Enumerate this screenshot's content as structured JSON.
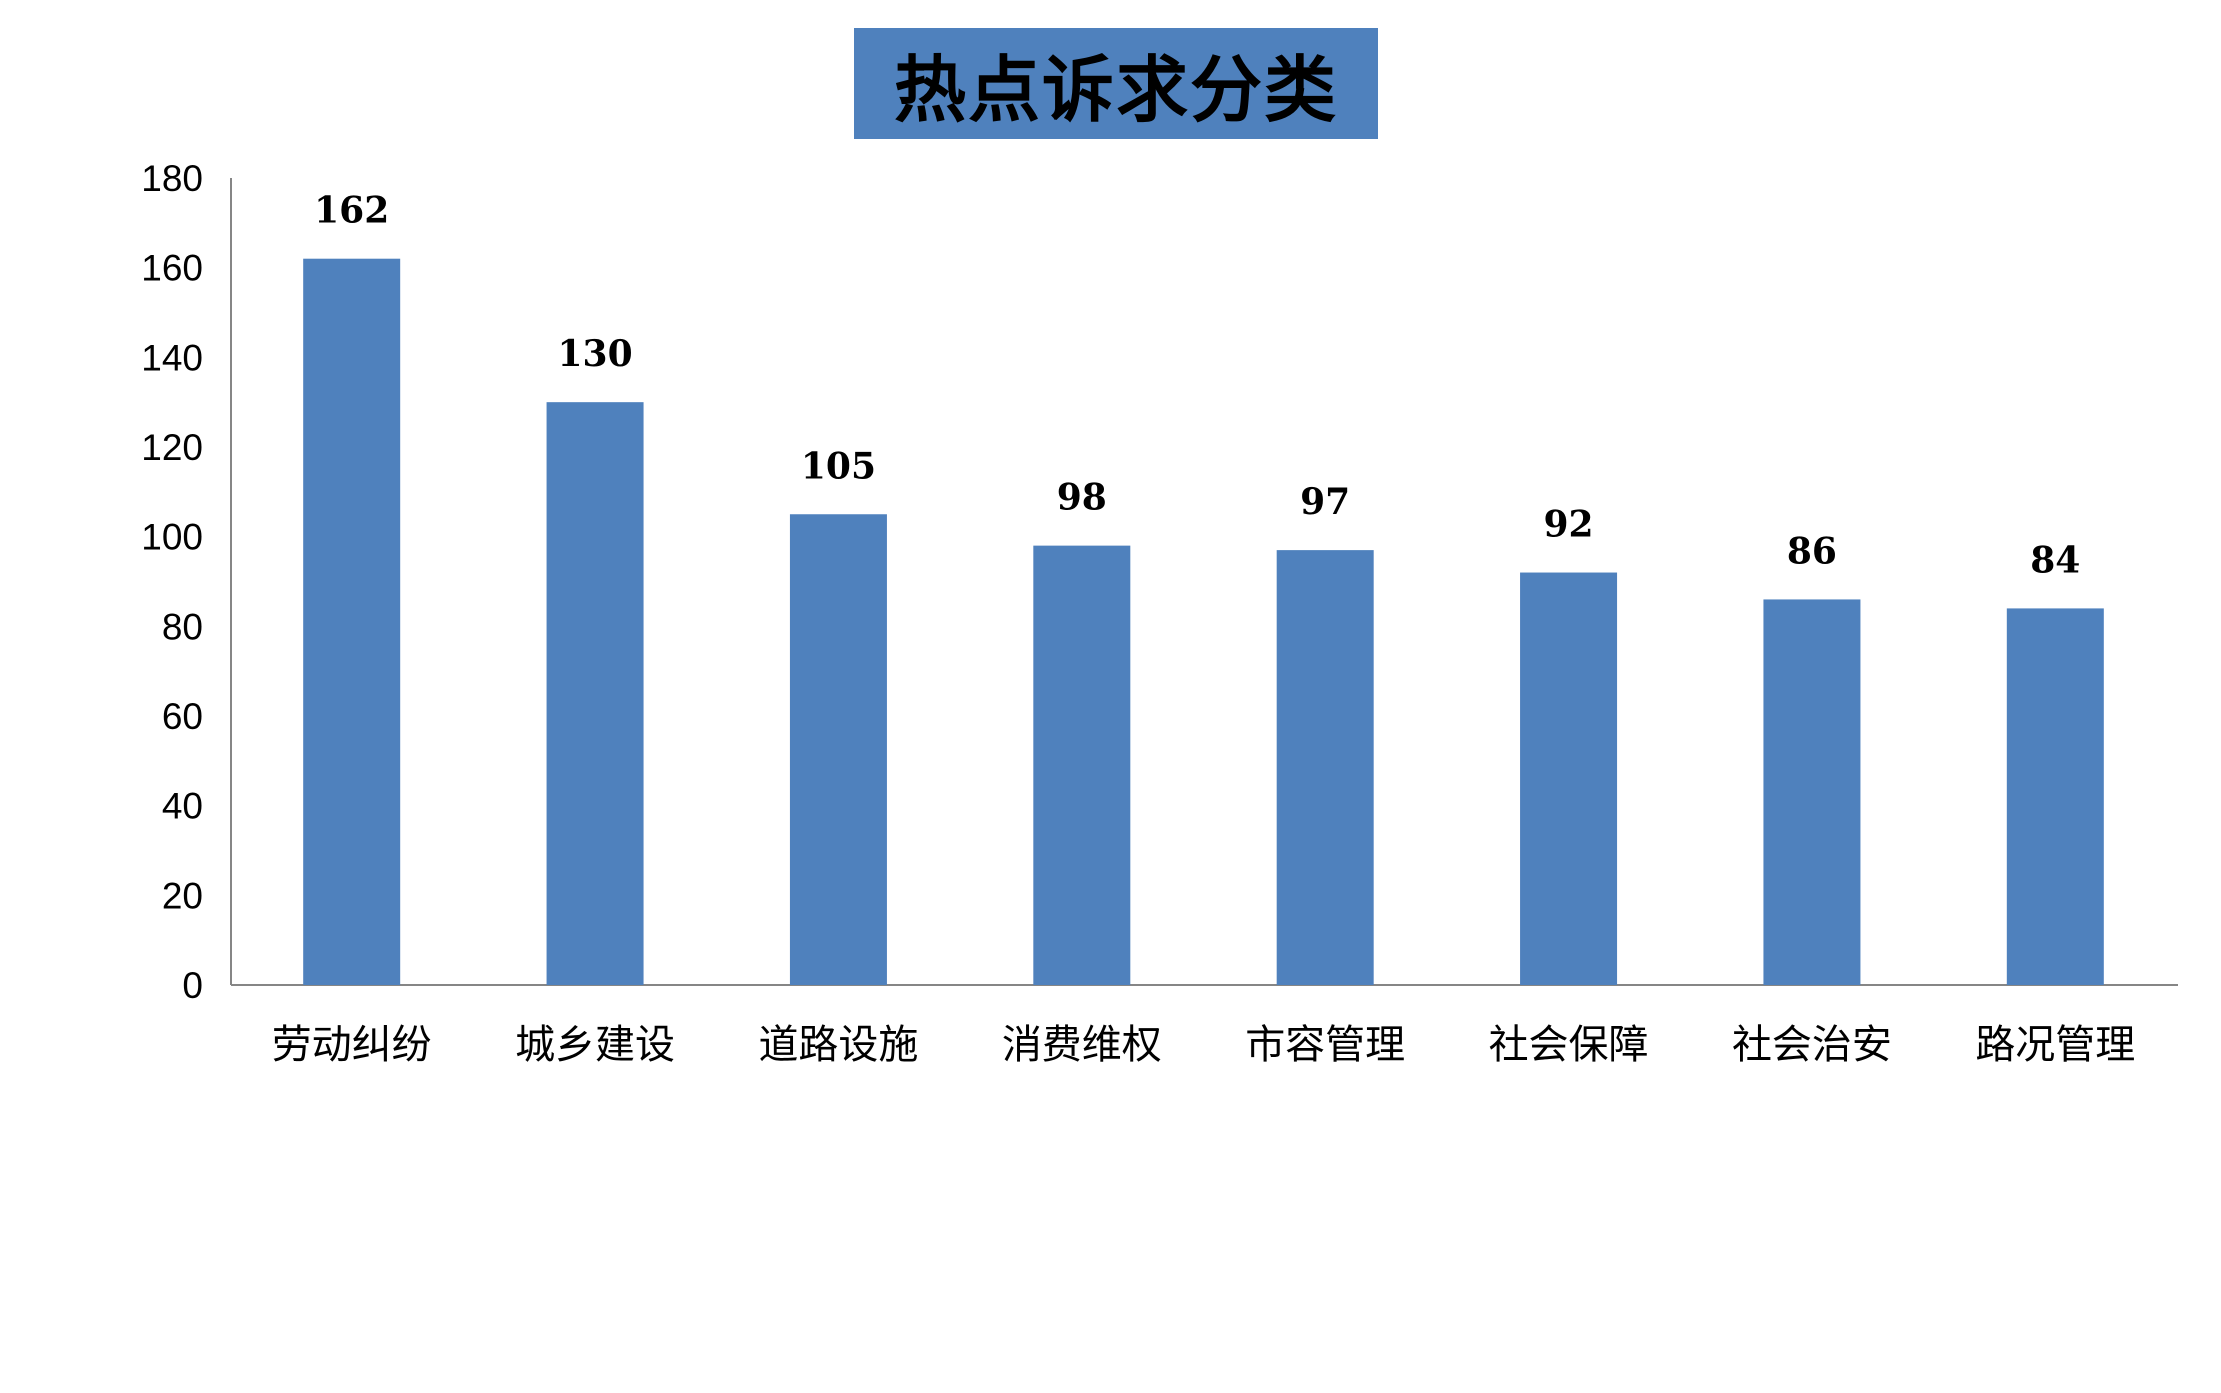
{
  "chart_data": {
    "type": "bar",
    "title": "热点诉求分类",
    "categories": [
      "劳动纠纷",
      "城乡建设",
      "道路设施",
      "消费维权",
      "市容管理",
      "社会保障",
      "社会治安",
      "路况管理"
    ],
    "values": [
      162,
      130,
      105,
      98,
      97,
      92,
      86,
      84
    ],
    "ylim": [
      0,
      180
    ],
    "yticks": [
      0,
      20,
      40,
      60,
      80,
      100,
      120,
      140,
      160,
      180
    ],
    "grid": false,
    "legend": "none",
    "data_labels": true,
    "bar_color": "#4f81bd",
    "title_background": "#4f81bd"
  }
}
